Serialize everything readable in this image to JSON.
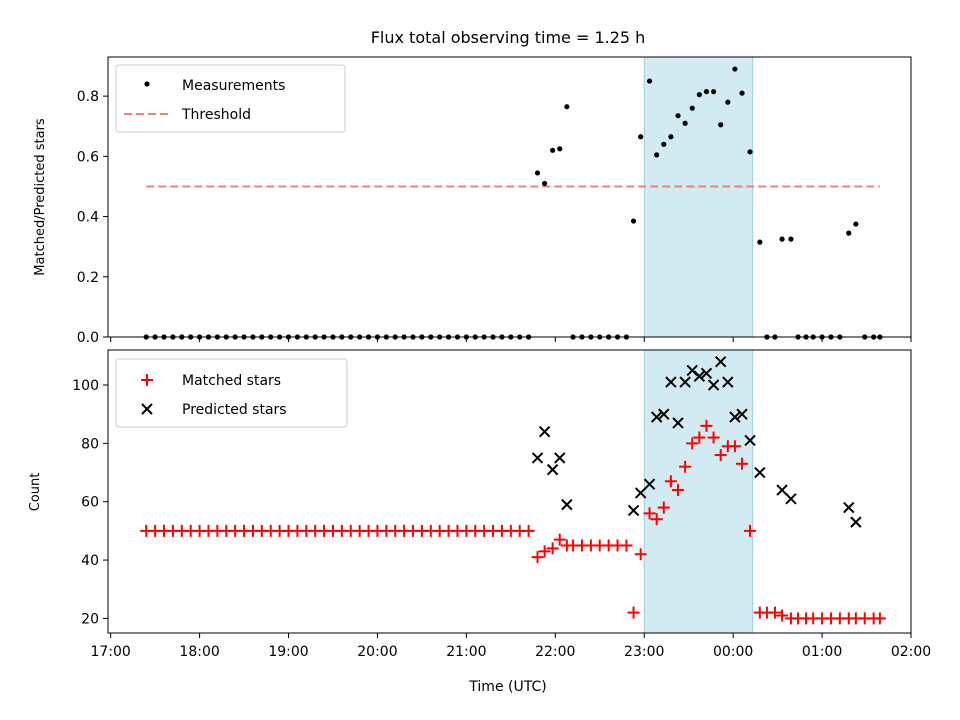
{
  "chart_data": [
    {
      "type": "scatter",
      "title": "Flux total observing time = 1.25 h",
      "ylabel": "Matched/Predicted stars",
      "ylim": [
        0.0,
        0.93
      ],
      "yticks": [
        "0.0",
        "0.2",
        "0.4",
        "0.6",
        "0.8"
      ],
      "ytick_values": [
        0.0,
        0.2,
        0.4,
        0.6,
        0.8
      ],
      "highlight_span": {
        "from_hour": 23.0,
        "to_hour": 24.22
      },
      "legend": {
        "position": "top-left",
        "entries": [
          "Measurements",
          "Threshold"
        ]
      },
      "threshold": {
        "name": "Threshold",
        "value": 0.5,
        "x_from": 17.4,
        "x_to": 25.65
      },
      "series": [
        {
          "name": "Measurements",
          "x": [
            17.4,
            17.5,
            17.6,
            17.7,
            17.8,
            17.9,
            18.0,
            18.1,
            18.2,
            18.3,
            18.4,
            18.5,
            18.6,
            18.7,
            18.8,
            18.9,
            19.0,
            19.1,
            19.2,
            19.3,
            19.4,
            19.5,
            19.6,
            19.7,
            19.8,
            19.9,
            20.0,
            20.1,
            20.2,
            20.3,
            20.4,
            20.5,
            20.6,
            20.7,
            20.8,
            20.9,
            21.0,
            21.1,
            21.2,
            21.3,
            21.4,
            21.5,
            21.6,
            21.7,
            21.8,
            21.88,
            21.97,
            22.05,
            22.13,
            22.2,
            22.3,
            22.4,
            22.5,
            22.6,
            22.7,
            22.8,
            22.88,
            22.96,
            23.06,
            23.14,
            23.22,
            23.3,
            23.38,
            23.46,
            23.54,
            23.62,
            23.7,
            23.78,
            23.86,
            23.94,
            24.02,
            24.1,
            24.19,
            24.3,
            24.38,
            24.47,
            24.55,
            24.65,
            24.73,
            24.82,
            24.9,
            25.0,
            25.1,
            25.2,
            25.3,
            25.38,
            25.48,
            25.58,
            25.65
          ],
          "y": [
            0,
            0,
            0,
            0,
            0,
            0,
            0,
            0,
            0,
            0,
            0,
            0,
            0,
            0,
            0,
            0,
            0,
            0,
            0,
            0,
            0,
            0,
            0,
            0,
            0,
            0,
            0,
            0,
            0,
            0,
            0,
            0,
            0,
            0,
            0,
            0,
            0,
            0,
            0,
            0,
            0,
            0,
            0,
            0,
            0.545,
            0.51,
            0.62,
            0.625,
            0.765,
            0,
            0,
            0,
            0,
            0,
            0,
            0,
            0.385,
            0.665,
            0.85,
            0.605,
            0.64,
            0.665,
            0.735,
            0.71,
            0.76,
            0.805,
            0.815,
            0.815,
            0.705,
            0.78,
            0.89,
            0.81,
            0.615,
            0.315,
            0,
            0,
            0.325,
            0.325,
            0,
            0,
            0,
            0,
            0,
            0,
            0.345,
            0.375,
            0,
            0,
            0
          ]
        }
      ]
    },
    {
      "type": "scatter",
      "xlabel": "Time (UTC)",
      "ylabel": "Count",
      "ylim": [
        15,
        112
      ],
      "yticks": [
        "20",
        "40",
        "60",
        "80",
        "100"
      ],
      "ytick_values": [
        20,
        40,
        60,
        80,
        100
      ],
      "highlight_span": {
        "from_hour": 23.0,
        "to_hour": 24.22
      },
      "legend": {
        "position": "top-left",
        "entries": [
          "Matched stars",
          "Predicted stars"
        ]
      },
      "xticks": [
        "17:00",
        "18:00",
        "19:00",
        "20:00",
        "21:00",
        "22:00",
        "23:00",
        "00:00",
        "01:00",
        "02:00"
      ],
      "xtick_values": [
        17,
        18,
        19,
        20,
        21,
        22,
        23,
        24,
        25,
        26
      ],
      "xlim_hours": [
        16.97,
        26.0
      ],
      "series": [
        {
          "name": "Matched stars",
          "marker": "plus",
          "x": [
            17.4,
            17.5,
            17.6,
            17.7,
            17.8,
            17.9,
            18.0,
            18.1,
            18.2,
            18.3,
            18.4,
            18.5,
            18.6,
            18.7,
            18.8,
            18.9,
            19.0,
            19.1,
            19.2,
            19.3,
            19.4,
            19.5,
            19.6,
            19.7,
            19.8,
            19.9,
            20.0,
            20.1,
            20.2,
            20.3,
            20.4,
            20.5,
            20.6,
            20.7,
            20.8,
            20.9,
            21.0,
            21.1,
            21.2,
            21.3,
            21.4,
            21.5,
            21.6,
            21.7,
            21.8,
            21.88,
            21.97,
            22.05,
            22.13,
            22.2,
            22.3,
            22.4,
            22.5,
            22.6,
            22.7,
            22.8,
            22.88,
            22.96,
            23.06,
            23.14,
            23.22,
            23.3,
            23.38,
            23.46,
            23.54,
            23.62,
            23.7,
            23.78,
            23.86,
            23.94,
            24.02,
            24.1,
            24.19,
            24.3,
            24.38,
            24.47,
            24.55,
            24.65,
            24.73,
            24.82,
            24.9,
            25.0,
            25.1,
            25.2,
            25.3,
            25.38,
            25.48,
            25.58,
            25.65
          ],
          "y": [
            50,
            50,
            50,
            50,
            50,
            50,
            50,
            50,
            50,
            50,
            50,
            50,
            50,
            50,
            50,
            50,
            50,
            50,
            50,
            50,
            50,
            50,
            50,
            50,
            50,
            50,
            50,
            50,
            50,
            50,
            50,
            50,
            50,
            50,
            50,
            50,
            50,
            50,
            50,
            50,
            50,
            50,
            50,
            50,
            41,
            43,
            44,
            47,
            45,
            45,
            45,
            45,
            45,
            45,
            45,
            45,
            22,
            42,
            56,
            54,
            58,
            67,
            64,
            72,
            80,
            82,
            86,
            82,
            76,
            79,
            79,
            73,
            50,
            22,
            22,
            22,
            21,
            20,
            20,
            20,
            20,
            20,
            20,
            20,
            20,
            20,
            20,
            20,
            20
          ]
        },
        {
          "name": "Predicted stars",
          "marker": "x",
          "x": [
            21.8,
            21.88,
            21.97,
            22.05,
            22.13,
            22.88,
            22.96,
            23.06,
            23.14,
            23.22,
            23.3,
            23.38,
            23.46,
            23.54,
            23.62,
            23.7,
            23.78,
            23.86,
            23.94,
            24.02,
            24.1,
            24.19,
            24.3,
            24.55,
            24.65,
            25.3,
            25.38
          ],
          "y": [
            75,
            84,
            71,
            75,
            59,
            57,
            63,
            66,
            89,
            90,
            101,
            87,
            101,
            105,
            103,
            104,
            100,
            108,
            101,
            89,
            90,
            81,
            70,
            64,
            61,
            58,
            53
          ]
        }
      ]
    }
  ]
}
